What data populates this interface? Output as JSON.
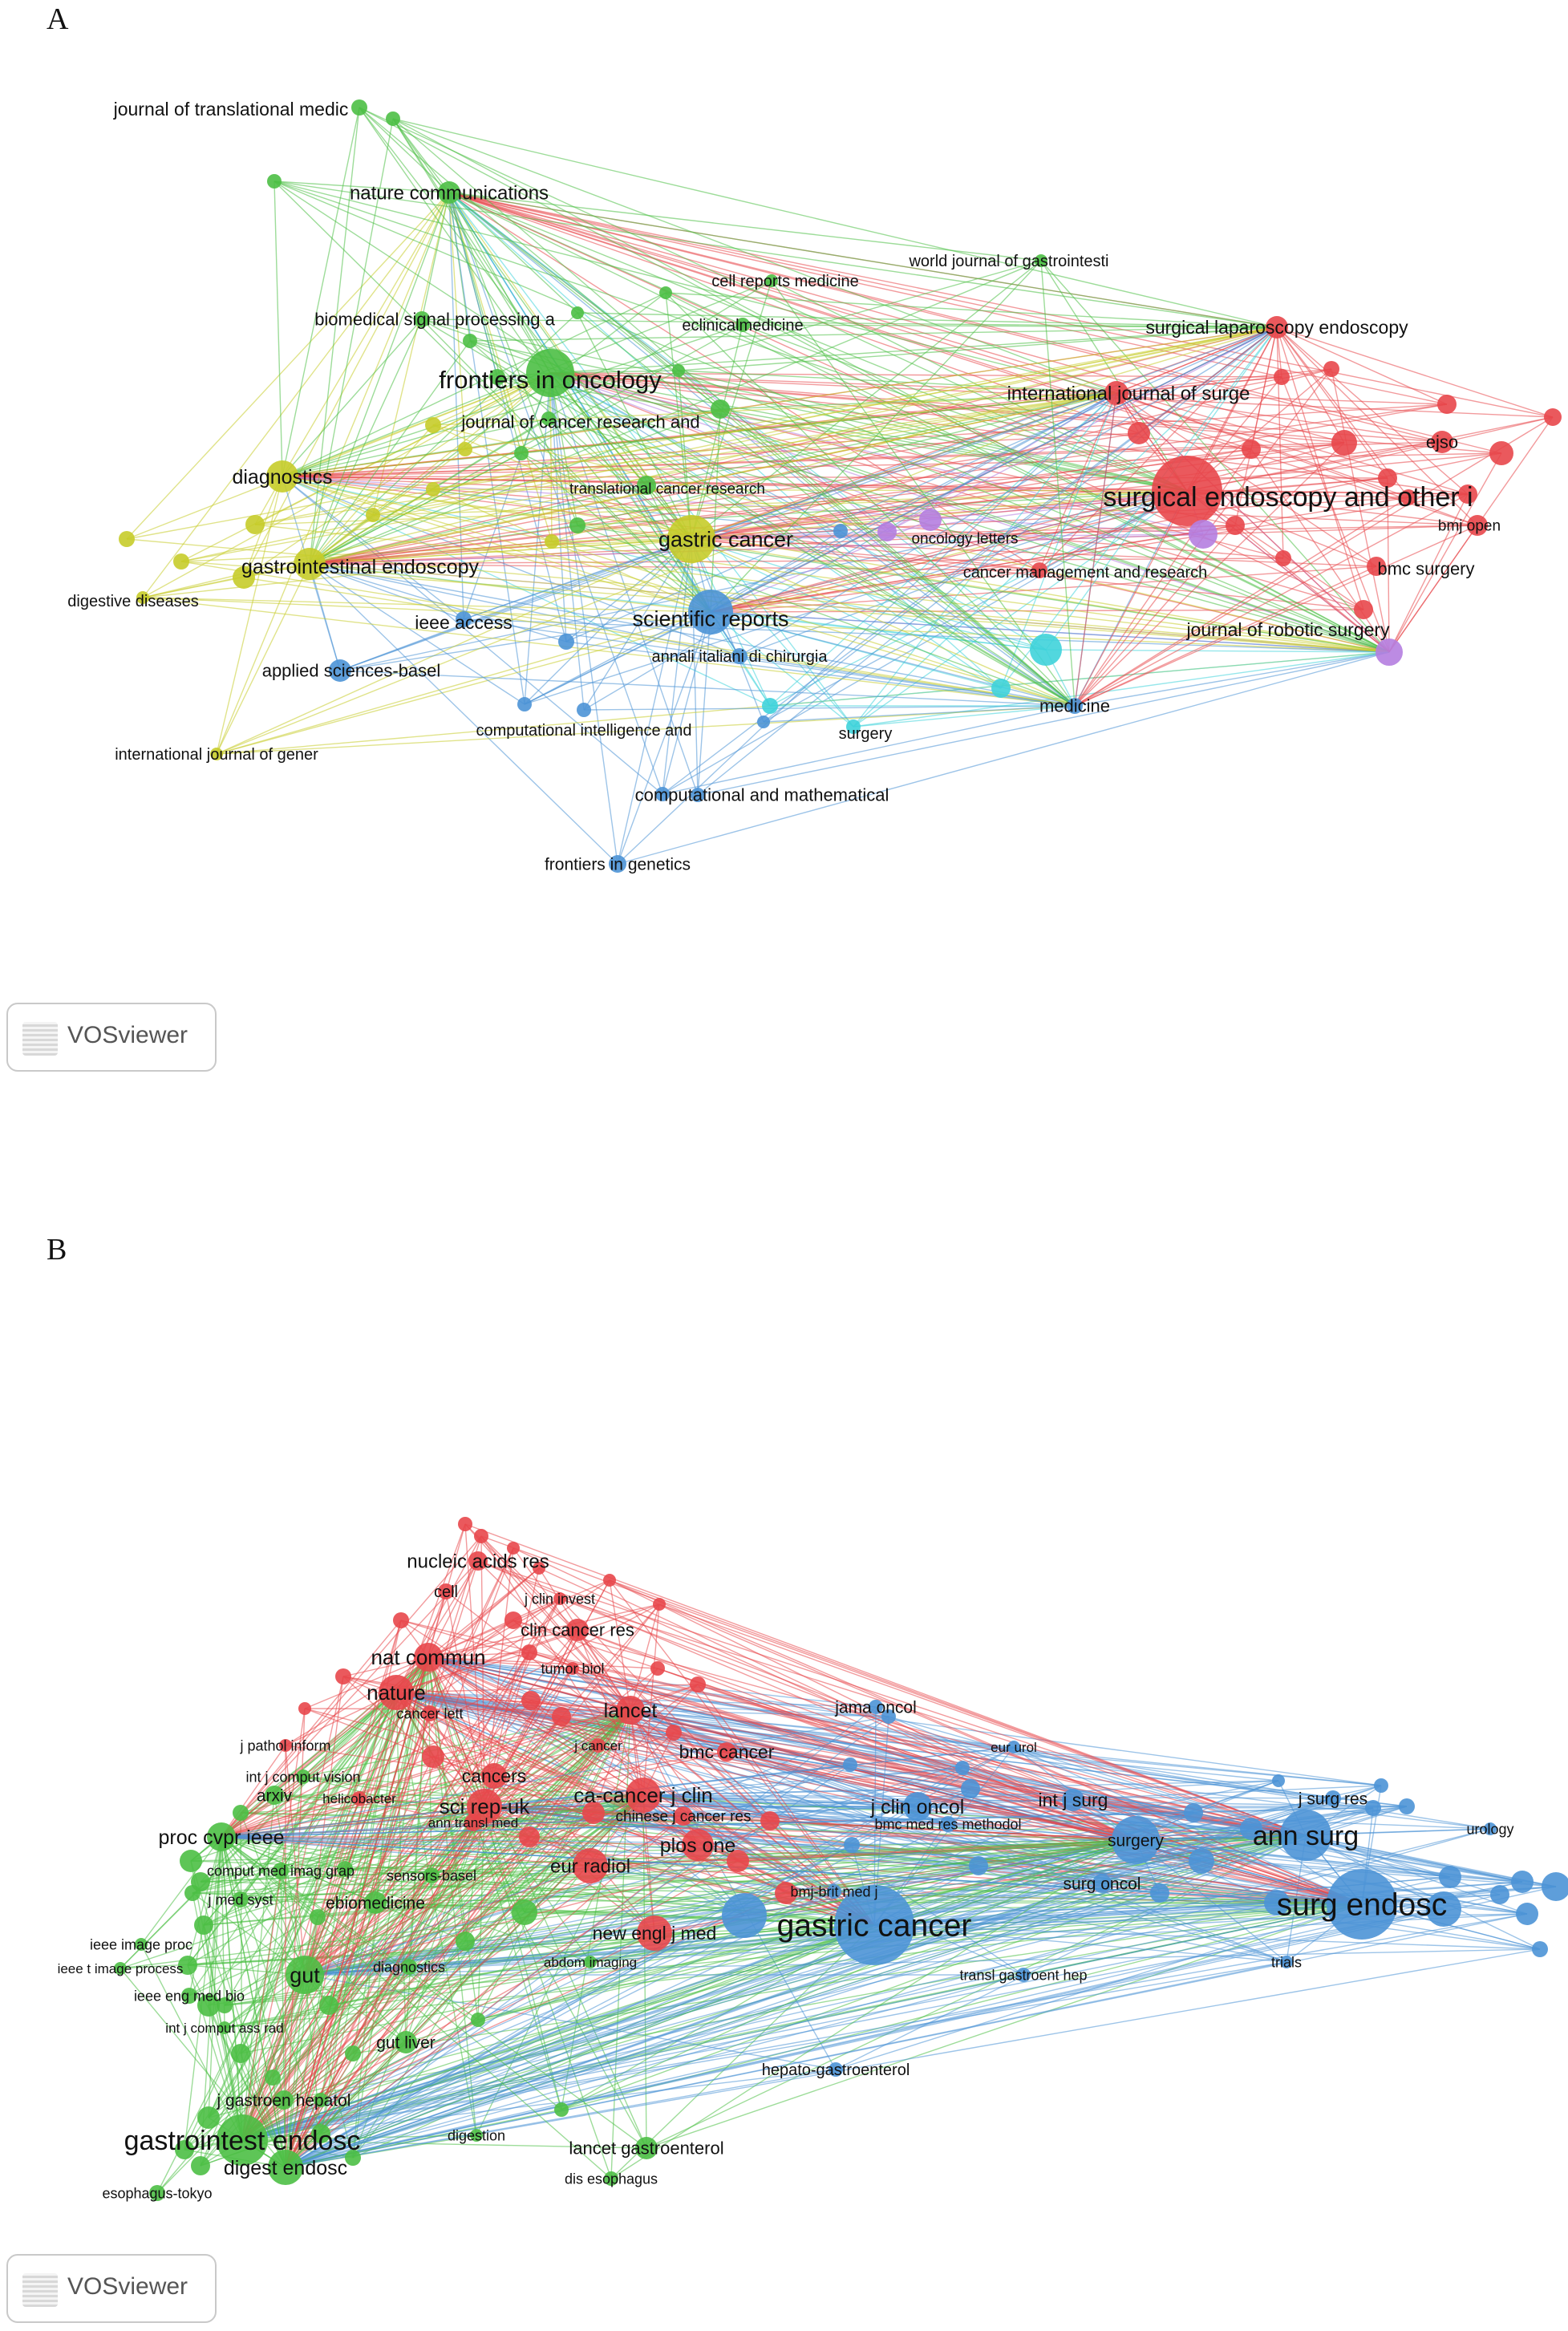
{
  "panels": [
    {
      "letter": "A",
      "badge": "VOSviewer",
      "colors": {
        "red": "#e8474b",
        "green": "#4cbf45",
        "blue": "#4d94d6",
        "yellow": "#c7cc2a",
        "purple": "#b57ee0",
        "cyan": "#3fd3da"
      },
      "labels": [
        "journal of translational medic",
        "nature communications",
        "cell reports medicine",
        "world journal of gastrointesti",
        "biomedical signal processing a",
        "eclinicalmedicine",
        "surgical laparoscopy endoscopy",
        "frontiers in oncology",
        "international journal of surge",
        "journal of cancer research and",
        "ejso",
        "diagnostics",
        "translational cancer research",
        "surgical endoscopy and other i",
        "bmj open",
        "gastric cancer",
        "oncology letters",
        "gastrointestinal endoscopy",
        "cancer management and research",
        "bmc surgery",
        "digestive diseases",
        "ieee access",
        "scientific reports",
        "journal of robotic surgery",
        "applied sciences-basel",
        "annali italiani di chirurgia",
        "medicine",
        "computational intelligence and",
        "surgery",
        "international journal of gener",
        "computational and mathematical",
        "frontiers in genetics"
      ]
    },
    {
      "letter": "B",
      "badge": "VOSviewer",
      "colors": {
        "red": "#e8474b",
        "green": "#4cbf45",
        "blue": "#4d94d6"
      },
      "labels": [
        "nucleic acids res",
        "cell",
        "j clin invest",
        "clin cancer res",
        "nat commun",
        "tumor biol",
        "nature",
        "jama oncol",
        "cancer lett",
        "lancet",
        "j pathol inform",
        "j cancer",
        "bmc cancer",
        "eur urol",
        "int j comput vision",
        "cancers",
        "ca-cancer j clin",
        "arxiv",
        "helicobacter",
        "int j surg",
        "sci rep-uk",
        "j clin oncol",
        "j surg res",
        "chinese j cancer res",
        "proc cvpr ieee",
        "ann transl med",
        "bmc med res methodol",
        "ann surg",
        "urology",
        "plos one",
        "surgery",
        "eur radiol",
        "comput med imag grap",
        "sensors-basel",
        "surg oncol",
        "bmj-brit med j",
        "j med syst",
        "ebiomedicine",
        "surg endosc",
        "new engl j med",
        "ieee image proc",
        "gastric cancer",
        "ieee t image process",
        "diagnostics",
        "abdom imaging",
        "trials",
        "transl gastroent hep",
        "gut",
        "ieee eng med bio",
        "int j comput ass rad",
        "gut liver",
        "hepato-gastroenterol",
        "j gastroen hepatol",
        "gastrointest endosc",
        "digestion",
        "lancet gastroenterol",
        "digest endosc",
        "dis esophagus",
        "esophagus-tokyo"
      ]
    }
  ]
}
